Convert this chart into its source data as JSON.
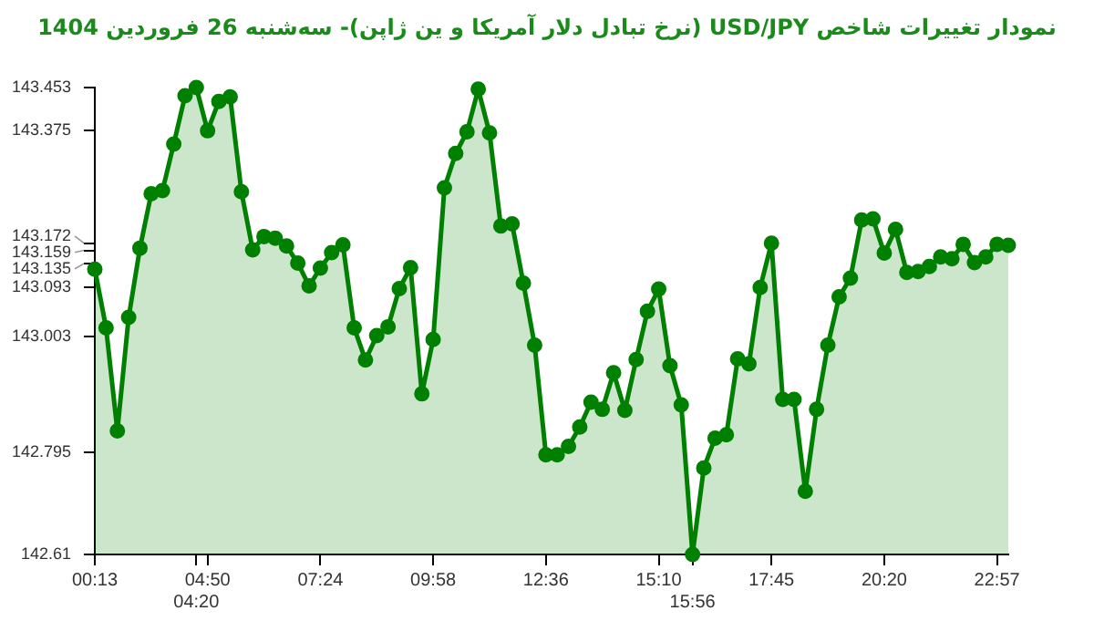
{
  "chart_data": {
    "type": "area",
    "title": "نمودار تغییرات شاخص USD/JPY (نرخ تبادل دلار آمریکا و ین ژاپن)- سه‌شنبه  26 فروردین 1404",
    "categories": [
      "00:13",
      null,
      null,
      null,
      null,
      null,
      null,
      null,
      null,
      "04:20",
      "04:50",
      null,
      null,
      null,
      null,
      null,
      null,
      null,
      null,
      null,
      "07:24",
      null,
      null,
      null,
      null,
      null,
      null,
      null,
      null,
      null,
      "09:58",
      null,
      null,
      null,
      null,
      null,
      null,
      null,
      null,
      null,
      "12:36",
      null,
      null,
      null,
      null,
      null,
      null,
      null,
      null,
      null,
      "15:10",
      null,
      null,
      "15:56",
      null,
      null,
      null,
      null,
      null,
      null,
      "17:45",
      null,
      null,
      null,
      null,
      null,
      null,
      null,
      null,
      null,
      "20:20",
      null,
      null,
      null,
      null,
      null,
      null,
      null,
      null,
      null,
      "22:57",
      null
    ],
    "series": [
      {
        "color": "#008000",
        "values": [
          143.125,
          143.019,
          142.833,
          143.038,
          143.163,
          143.261,
          143.267,
          143.351,
          143.438,
          143.453,
          143.375,
          143.428,
          143.436,
          143.265,
          143.16,
          143.184,
          143.181,
          143.167,
          143.136,
          143.095,
          143.127,
          143.155,
          143.169,
          143.019,
          142.961,
          143.005,
          143.021,
          143.09,
          143.128,
          142.9,
          142.998,
          143.272,
          143.334,
          143.373,
          143.45,
          143.371,
          143.203,
          143.207,
          143.1,
          142.988,
          142.79,
          142.79,
          142.805,
          142.84,
          142.885,
          142.872,
          142.938,
          142.87,
          142.962,
          143.049,
          143.089,
          142.951,
          142.88,
          142.61,
          142.766,
          142.82,
          142.826,
          142.963,
          142.954,
          143.092,
          143.172,
          142.89,
          142.89,
          142.724,
          142.872,
          142.988,
          143.075,
          143.109,
          143.214,
          143.216,
          143.154,
          143.197,
          143.119,
          143.121,
          143.13,
          143.147,
          143.144,
          143.17,
          143.137,
          143.147,
          143.17,
          143.168
        ]
      }
    ],
    "ylim": [
      142.61,
      143.453
    ],
    "yticks": [
      142.61,
      142.795,
      143.003,
      143.093,
      143.135,
      143.159,
      143.172,
      143.375,
      143.453
    ],
    "marker": "circle",
    "legend": false
  }
}
